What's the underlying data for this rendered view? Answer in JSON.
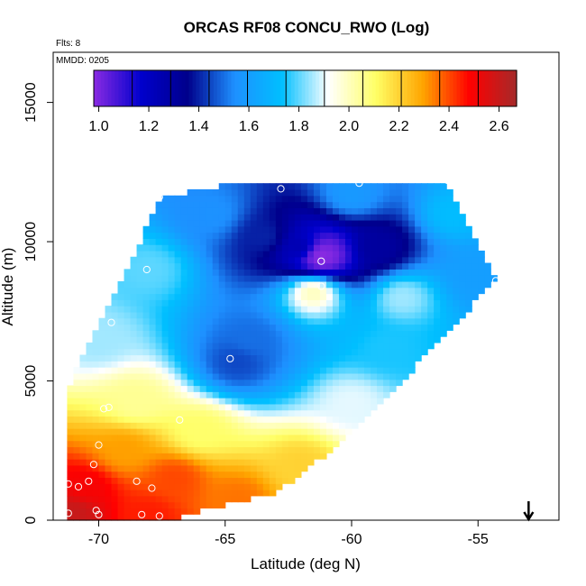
{
  "chart_data": {
    "type": "heatmap",
    "title": "ORCAS RF08 CONCU_RWO (Log)",
    "flights_note": "Flts: 8",
    "date_note": "MMDD: 0205",
    "xlabel": "Latitude (deg N)",
    "ylabel": "Altitude (m)",
    "xlim": [
      -71.8,
      -51.8
    ],
    "ylim": [
      0,
      16800
    ],
    "x_ticks": [
      -70,
      -65,
      -60,
      -55
    ],
    "x_tick_labels": [
      "-70",
      "-65",
      "-60",
      "-55"
    ],
    "y_ticks": [
      0,
      5000,
      10000,
      15000
    ],
    "y_tick_labels": [
      "0",
      "5000",
      "10000",
      "15000"
    ],
    "colorbar": {
      "min": 0.98,
      "max": 2.67,
      "ticks": [
        1.0,
        1.2,
        1.4,
        1.6,
        1.8,
        2.0,
        2.2,
        2.4,
        2.6
      ],
      "tick_labels": [
        "1.0",
        "1.2",
        "1.4",
        "1.6",
        "1.8",
        "2.0",
        "2.2",
        "2.4",
        "2.6"
      ],
      "colors": [
        "#8a2be2",
        "#0000cd",
        "#00008b",
        "#1e90ff",
        "#00bfff",
        "#ffffff",
        "#ffff66",
        "#ffa500",
        "#ff0000",
        "#a52a2a"
      ]
    },
    "coverage_polygon": [
      [
        -71.3,
        0
      ],
      [
        -67.3,
        0
      ],
      [
        -63.0,
        1000
      ],
      [
        -61.5,
        2000
      ],
      [
        -59.0,
        4000
      ],
      [
        -56.0,
        7000
      ],
      [
        -54.3,
        8600
      ],
      [
        -56.3,
        12200
      ],
      [
        -64.0,
        12200
      ],
      [
        -67.5,
        11600
      ],
      [
        -71.2,
        4800
      ]
    ],
    "field_anchors": [
      {
        "lat": -61.2,
        "alt": 9500,
        "value": 0.98,
        "weight": 2.5
      },
      {
        "lat": -62.0,
        "alt": 9800,
        "value": 1.25,
        "weight": 1.0
      },
      {
        "lat": -59.0,
        "alt": 9800,
        "value": 1.3,
        "weight": 1.0
      },
      {
        "lat": -63.5,
        "alt": 10200,
        "value": 1.4,
        "weight": 1.0
      },
      {
        "lat": -65.5,
        "alt": 11000,
        "value": 1.55,
        "weight": 1.0
      },
      {
        "lat": -60.0,
        "alt": 11700,
        "value": 1.58,
        "weight": 1.0
      },
      {
        "lat": -56.0,
        "alt": 11000,
        "value": 1.72,
        "weight": 0.6
      },
      {
        "lat": -55.0,
        "alt": 8700,
        "value": 1.6,
        "weight": 0.8
      },
      {
        "lat": -68.0,
        "alt": 9000,
        "value": 1.8,
        "weight": 1.0
      },
      {
        "lat": -61.5,
        "alt": 8200,
        "value": 2.0,
        "weight": 1.2
      },
      {
        "lat": -58.0,
        "alt": 8000,
        "value": 1.85,
        "weight": 0.8
      },
      {
        "lat": -64.0,
        "alt": 6500,
        "value": 1.5,
        "weight": 1.2
      },
      {
        "lat": -64.5,
        "alt": 5700,
        "value": 1.45,
        "weight": 1.2
      },
      {
        "lat": -58.5,
        "alt": 6200,
        "value": 1.75,
        "weight": 0.8
      },
      {
        "lat": -70.0,
        "alt": 6500,
        "value": 1.85,
        "weight": 1.0
      },
      {
        "lat": -60.0,
        "alt": 4200,
        "value": 1.9,
        "weight": 0.8
      },
      {
        "lat": -68.5,
        "alt": 4300,
        "value": 2.05,
        "weight": 1.0
      },
      {
        "lat": -66.0,
        "alt": 3200,
        "value": 2.1,
        "weight": 1.0
      },
      {
        "lat": -62.0,
        "alt": 2000,
        "value": 2.2,
        "weight": 0.8
      },
      {
        "lat": -69.0,
        "alt": 2500,
        "value": 2.3,
        "weight": 1.0
      },
      {
        "lat": -67.0,
        "alt": 1500,
        "value": 2.4,
        "weight": 1.0
      },
      {
        "lat": -70.5,
        "alt": 1200,
        "value": 2.5,
        "weight": 1.0
      },
      {
        "lat": -71.0,
        "alt": 300,
        "value": 2.6,
        "weight": 1.0
      },
      {
        "lat": -68.0,
        "alt": 200,
        "value": 2.45,
        "weight": 1.0
      },
      {
        "lat": -64.5,
        "alt": 800,
        "value": 2.35,
        "weight": 0.8
      }
    ],
    "flight_points": [
      [
        -67.6,
        11600
      ],
      [
        -62.8,
        11900
      ],
      [
        -59.7,
        12100
      ],
      [
        -56.2,
        12200
      ],
      [
        -54.3,
        8600
      ],
      [
        -61.2,
        9300
      ],
      [
        -61.2,
        8400
      ],
      [
        -68.1,
        9000
      ],
      [
        -69.5,
        7100
      ],
      [
        -64.8,
        5800
      ],
      [
        -66.8,
        3600
      ],
      [
        -69.6,
        4050
      ],
      [
        -69.8,
        4000
      ],
      [
        -70.0,
        2700
      ],
      [
        -70.2,
        2000
      ],
      [
        -68.5,
        1400
      ],
      [
        -67.9,
        1150
      ],
      [
        -70.4,
        1400
      ],
      [
        -70.8,
        1200
      ],
      [
        -71.2,
        1300
      ],
      [
        -71.2,
        250
      ],
      [
        -70.1,
        350
      ],
      [
        -70.0,
        200
      ],
      [
        -68.3,
        200
      ],
      [
        -67.6,
        150
      ],
      [
        -63.4,
        650
      ]
    ],
    "arrow": {
      "lat": -53.0,
      "direction": "down"
    }
  }
}
